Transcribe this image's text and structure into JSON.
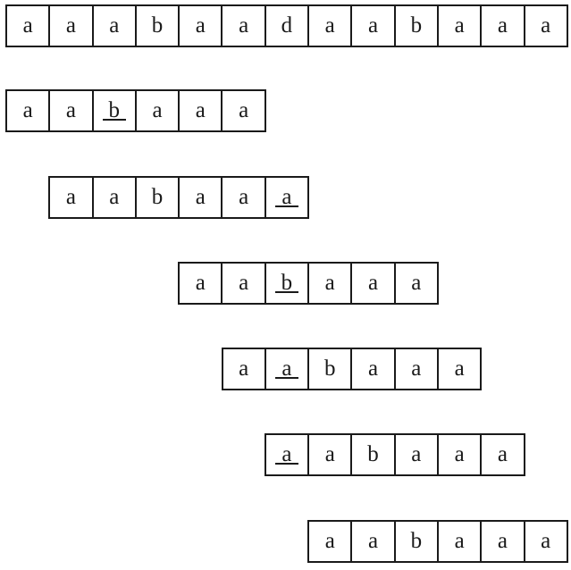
{
  "text_row": {
    "chars": [
      "a",
      "a",
      "a",
      "b",
      "a",
      "a",
      "d",
      "a",
      "a",
      "b",
      "a",
      "a",
      "a"
    ]
  },
  "pattern_rows": [
    {
      "chars": [
        "a",
        "a",
        "b",
        "a",
        "a",
        "a"
      ],
      "offset": 0,
      "highlight": 2
    },
    {
      "chars": [
        "a",
        "a",
        "b",
        "a",
        "a",
        "a"
      ],
      "offset": 1,
      "highlight": 5
    },
    {
      "chars": [
        "a",
        "a",
        "b",
        "a",
        "a",
        "a"
      ],
      "offset": 4,
      "highlight": 2
    },
    {
      "chars": [
        "a",
        "a",
        "b",
        "a",
        "a",
        "a"
      ],
      "offset": 5,
      "highlight": 1
    },
    {
      "chars": [
        "a",
        "a",
        "b",
        "a",
        "a",
        "a"
      ],
      "offset": 6,
      "highlight": 0
    },
    {
      "chars": [
        "a",
        "a",
        "b",
        "a",
        "a",
        "a"
      ],
      "offset": 7,
      "highlight": null
    }
  ]
}
